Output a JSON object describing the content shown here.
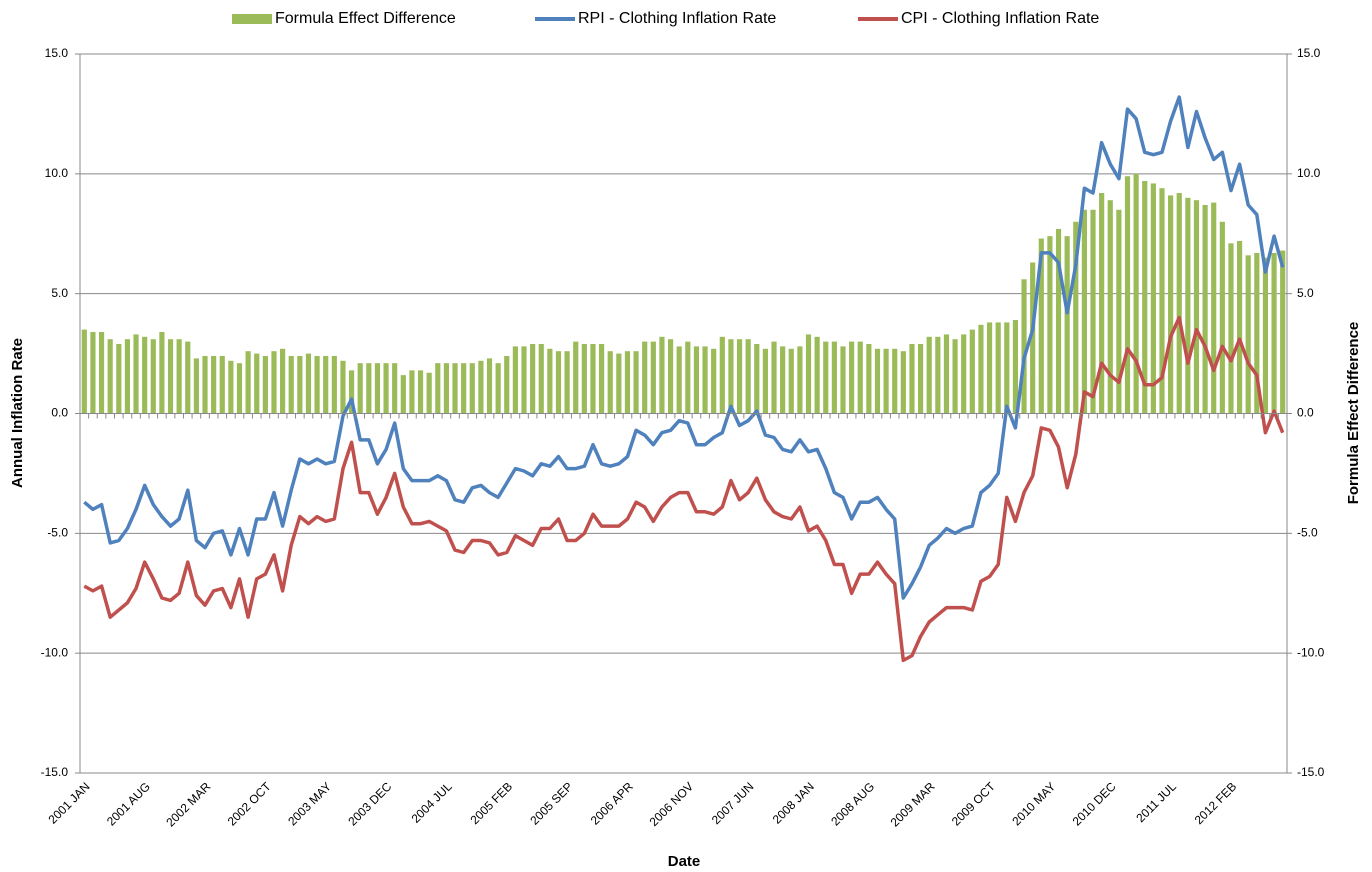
{
  "chart_data": {
    "type": "combo",
    "xlabel": "Date",
    "ylabel": "Annual Inflation Rate",
    "y2label": "Formula Effect Difference",
    "grid": true,
    "legend": "top",
    "categories": [
      "2001 JAN",
      null,
      null,
      null,
      null,
      null,
      null,
      "2001 AUG",
      null,
      null,
      null,
      null,
      null,
      null,
      "2002 MAR",
      null,
      null,
      null,
      null,
      null,
      null,
      "2002 OCT",
      null,
      null,
      null,
      null,
      null,
      null,
      "2003 MAY",
      null,
      null,
      null,
      null,
      null,
      null,
      "2003 DEC",
      null,
      null,
      null,
      null,
      null,
      null,
      "2004 JUL",
      null,
      null,
      null,
      null,
      null,
      null,
      "2005 FEB",
      null,
      null,
      null,
      null,
      null,
      null,
      "2005 SEP",
      null,
      null,
      null,
      null,
      null,
      null,
      "2006 APR",
      null,
      null,
      null,
      null,
      null,
      null,
      "2006 NOV",
      null,
      null,
      null,
      null,
      null,
      null,
      "2007 JUN",
      null,
      null,
      null,
      null,
      null,
      null,
      "2008 JAN",
      null,
      null,
      null,
      null,
      null,
      null,
      "2008 AUG",
      null,
      null,
      null,
      null,
      null,
      null,
      "2009 MAR",
      null,
      null,
      null,
      null,
      null,
      null,
      "2009 OCT",
      null,
      null,
      null,
      null,
      null,
      null,
      "2010 MAY",
      null,
      null,
      null,
      null,
      null,
      null,
      "2010 DEC",
      null,
      null,
      null,
      null,
      null,
      null,
      "2011 JUL",
      null,
      null,
      null,
      null,
      null,
      null,
      "2012 FEB",
      null,
      null,
      null,
      null,
      null,
      null
    ],
    "ylim": [
      -15,
      15
    ],
    "yticks": [
      {
        "value": -15,
        "label": "-15.0"
      },
      {
        "value": -10,
        "label": "-10.0"
      },
      {
        "value": -5,
        "label": "-5.0"
      },
      {
        "value": 0,
        "label": "0.0"
      },
      {
        "value": 5,
        "label": "5.0"
      },
      {
        "value": 10,
        "label": "10.0"
      },
      {
        "value": 15,
        "label": "15.0"
      }
    ],
    "y2lim": [
      -15,
      15
    ],
    "y2ticks": [
      {
        "value": -15,
        "label": "-15.0"
      },
      {
        "value": -10,
        "label": "-10.0"
      },
      {
        "value": -5,
        "label": "-5.0"
      },
      {
        "value": 0,
        "label": "0.0"
      },
      {
        "value": 5,
        "label": "5.0"
      },
      {
        "value": 10,
        "label": "10.0"
      },
      {
        "value": 15,
        "label": "15.0"
      }
    ],
    "series": [
      {
        "name": "Formula Effect Difference",
        "type": "bar",
        "axis": "y2",
        "color": "#9bbb59",
        "values": [
          3.5,
          3.4,
          3.4,
          3.1,
          2.9,
          3.1,
          3.3,
          3.2,
          3.1,
          3.4,
          3.1,
          3.1,
          3.0,
          2.3,
          2.4,
          2.4,
          2.4,
          2.2,
          2.1,
          2.6,
          2.5,
          2.4,
          2.6,
          2.7,
          2.4,
          2.4,
          2.5,
          2.4,
          2.4,
          2.4,
          2.2,
          1.8,
          2.1,
          2.1,
          2.1,
          2.1,
          2.1,
          1.6,
          1.8,
          1.8,
          1.7,
          2.1,
          2.1,
          2.1,
          2.1,
          2.1,
          2.2,
          2.3,
          2.1,
          2.4,
          2.8,
          2.8,
          2.9,
          2.9,
          2.7,
          2.6,
          2.6,
          3.0,
          2.9,
          2.9,
          2.9,
          2.6,
          2.5,
          2.6,
          2.6,
          3.0,
          3.0,
          3.2,
          3.1,
          2.8,
          3.0,
          2.8,
          2.8,
          2.7,
          3.2,
          3.1,
          3.1,
          3.1,
          2.9,
          2.7,
          3.0,
          2.8,
          2.7,
          2.8,
          3.3,
          3.2,
          3.0,
          3.0,
          2.8,
          3.0,
          3.0,
          2.9,
          2.7,
          2.7,
          2.7,
          2.6,
          2.9,
          2.9,
          3.2,
          3.2,
          3.3,
          3.1,
          3.3,
          3.5,
          3.7,
          3.8,
          3.8,
          3.8,
          3.9,
          5.6,
          6.3,
          7.3,
          7.4,
          7.7,
          7.4,
          8.0,
          8.5,
          8.5,
          9.2,
          8.9,
          8.5,
          9.9,
          10.0,
          9.7,
          9.6,
          9.4,
          9.1,
          9.2,
          9.0,
          8.9,
          8.7,
          8.8,
          8.0,
          7.1,
          7.2,
          6.6,
          6.7,
          6.5,
          6.7,
          6.8
        ]
      },
      {
        "name": "RPI - Clothing Inflation Rate",
        "type": "line",
        "color": "#4f81bd",
        "values": [
          -3.7,
          -4.0,
          -3.8,
          -5.4,
          -5.3,
          -4.8,
          -4.0,
          -3.0,
          -3.8,
          -4.3,
          -4.7,
          -4.4,
          -3.2,
          -5.3,
          -5.6,
          -5.0,
          -4.9,
          -5.9,
          -4.8,
          -5.9,
          -4.4,
          -4.4,
          -3.3,
          -4.7,
          -3.2,
          -1.9,
          -2.1,
          -1.9,
          -2.1,
          -2.0,
          -0.1,
          0.6,
          -1.1,
          -1.1,
          -2.1,
          -1.5,
          -0.4,
          -2.3,
          -2.8,
          -2.8,
          -2.8,
          -2.6,
          -2.8,
          -3.6,
          -3.7,
          -3.1,
          -3.0,
          -3.3,
          -3.5,
          -2.9,
          -2.3,
          -2.4,
          -2.6,
          -2.1,
          -2.2,
          -1.8,
          -2.3,
          -2.3,
          -2.2,
          -1.3,
          -2.1,
          -2.2,
          -2.1,
          -1.8,
          -0.7,
          -0.9,
          -1.3,
          -0.8,
          -0.7,
          -0.3,
          -0.4,
          -1.3,
          -1.3,
          -1.0,
          -0.8,
          0.3,
          -0.5,
          -0.3,
          0.1,
          -0.9,
          -1.0,
          -1.5,
          -1.6,
          -1.1,
          -1.6,
          -1.5,
          -2.3,
          -3.3,
          -3.5,
          -4.4,
          -3.7,
          -3.7,
          -3.5,
          -4.0,
          -4.4,
          -7.7,
          -7.1,
          -6.4,
          -5.5,
          -5.2,
          -4.8,
          -5.0,
          -4.8,
          -4.7,
          -3.3,
          -3.0,
          -2.5,
          0.3,
          -0.6,
          2.3,
          3.5,
          6.7,
          6.7,
          6.3,
          4.2,
          6.2,
          9.4,
          9.2,
          11.3,
          10.4,
          9.8,
          12.7,
          12.3,
          10.9,
          10.8,
          10.9,
          12.2,
          13.2,
          11.1,
          12.6,
          11.5,
          10.6,
          10.9,
          9.3,
          10.4,
          8.7,
          8.3,
          5.9,
          7.4,
          6.1
        ]
      },
      {
        "name": "CPI - Clothing Inflation Rate",
        "type": "line",
        "color": "#c0504d",
        "values": [
          -7.2,
          -7.4,
          -7.2,
          -8.5,
          -8.2,
          -7.9,
          -7.3,
          -6.2,
          -6.9,
          -7.7,
          -7.8,
          -7.5,
          -6.2,
          -7.6,
          -8.0,
          -7.4,
          -7.3,
          -8.1,
          -6.9,
          -8.5,
          -6.9,
          -6.7,
          -5.9,
          -7.4,
          -5.5,
          -4.3,
          -4.6,
          -4.3,
          -4.5,
          -4.4,
          -2.3,
          -1.2,
          -3.3,
          -3.3,
          -4.2,
          -3.5,
          -2.5,
          -3.9,
          -4.6,
          -4.6,
          -4.5,
          -4.7,
          -4.9,
          -5.7,
          -5.8,
          -5.3,
          -5.3,
          -5.4,
          -5.9,
          -5.8,
          -5.1,
          -5.3,
          -5.5,
          -4.8,
          -4.8,
          -4.4,
          -5.3,
          -5.3,
          -5.0,
          -4.2,
          -4.7,
          -4.7,
          -4.7,
          -4.4,
          -3.7,
          -3.9,
          -4.5,
          -3.9,
          -3.5,
          -3.3,
          -3.3,
          -4.1,
          -4.1,
          -4.2,
          -3.9,
          -2.8,
          -3.6,
          -3.3,
          -2.7,
          -3.6,
          -4.1,
          -4.3,
          -4.4,
          -3.9,
          -4.9,
          -4.7,
          -5.3,
          -6.3,
          -6.3,
          -7.5,
          -6.7,
          -6.7,
          -6.2,
          -6.7,
          -7.1,
          -10.3,
          -10.1,
          -9.3,
          -8.7,
          -8.4,
          -8.1,
          -8.1,
          -8.1,
          -8.2,
          -7.0,
          -6.8,
          -6.3,
          -3.5,
          -4.5,
          -3.3,
          -2.6,
          -0.6,
          -0.7,
          -1.4,
          -3.1,
          -1.7,
          0.9,
          0.7,
          2.1,
          1.6,
          1.3,
          2.7,
          2.2,
          1.2,
          1.2,
          1.5,
          3.2,
          4.0,
          2.1,
          3.5,
          2.8,
          1.8,
          2.8,
          2.2,
          3.1,
          2.1,
          1.6,
          -0.8,
          0.1,
          -0.8
        ]
      }
    ]
  }
}
